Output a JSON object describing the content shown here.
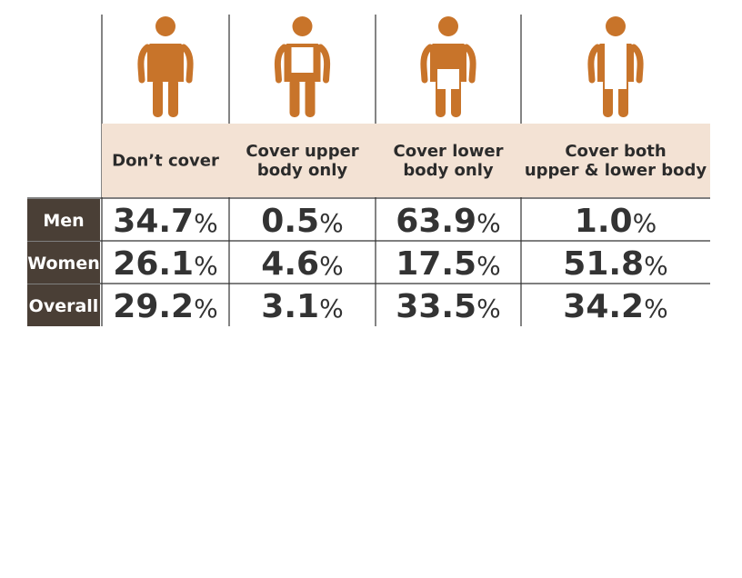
{
  "chart_data": {
    "type": "table",
    "columns": [
      {
        "label_lines": [
          "Don’t cover"
        ],
        "icon": "person-uncovered-icon",
        "cover": "none"
      },
      {
        "label_lines": [
          "Cover upper",
          "body only"
        ],
        "icon": "person-upper-covered-icon",
        "cover": "upper"
      },
      {
        "label_lines": [
          "Cover lower",
          "body only"
        ],
        "icon": "person-lower-covered-icon",
        "cover": "lower"
      },
      {
        "label_lines": [
          "Cover both",
          "upper & lower body"
        ],
        "icon": "person-fully-covered-icon",
        "cover": "both"
      }
    ],
    "rows": [
      {
        "label": "Men",
        "values": [
          34.7,
          0.5,
          63.9,
          1.0
        ]
      },
      {
        "label": "Women",
        "values": [
          26.1,
          4.6,
          17.5,
          51.8
        ]
      },
      {
        "label": "Overall",
        "values": [
          29.2,
          3.1,
          33.5,
          34.2
        ]
      }
    ],
    "unit": "%"
  },
  "colors": {
    "figure": "#c8742a",
    "cover": "#ffffff",
    "header_bg": "#f3e2d4",
    "row_label_bg": "#4a3f36",
    "value_text": "#333333",
    "grid": "#333333"
  }
}
